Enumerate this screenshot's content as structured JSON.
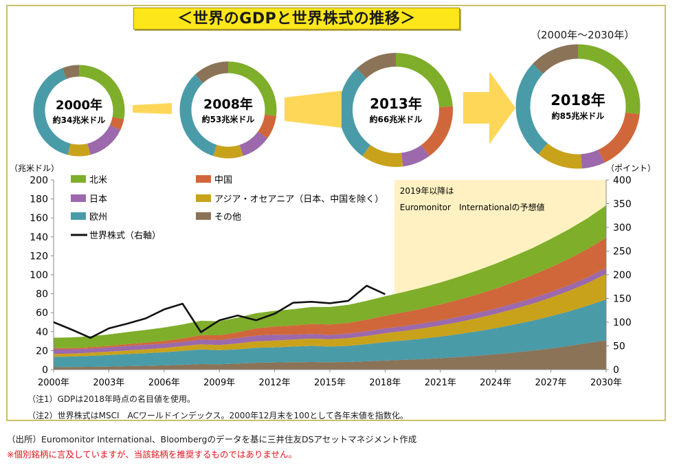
{
  "title": "＜世界のGDPと世界株式の推移＞",
  "period_label": "（2000年～2030年）",
  "donuts": [
    {
      "year": "2000年",
      "total": "約34兆米ドル",
      "shares": [
        0.28,
        0.04,
        0.14,
        0.08,
        0.4,
        0.06
      ]
    },
    {
      "year": "2008年",
      "total": "約53兆米ドル",
      "shares": [
        0.27,
        0.08,
        0.1,
        0.1,
        0.33,
        0.12
      ]
    },
    {
      "year": "2013年",
      "total": "約66兆米ドル",
      "shares": [
        0.24,
        0.16,
        0.08,
        0.12,
        0.28,
        0.12
      ]
    },
    {
      "year": "2018年",
      "total": "約85兆米ドル",
      "shares": [
        0.27,
        0.16,
        0.06,
        0.12,
        0.26,
        0.13
      ]
    }
  ],
  "chart_data": {
    "type": "area",
    "title": "世界のGDPと世界株式の推移",
    "left_unit": "（兆米ドル）",
    "right_unit": "（ポイント）",
    "left_ylim": [
      0,
      200
    ],
    "right_ylim": [
      0,
      400
    ],
    "left_ticks": [
      "0",
      "20",
      "40",
      "60",
      "80",
      "100",
      "120",
      "140",
      "160",
      "180",
      "200"
    ],
    "right_ticks": [
      "0",
      "50",
      "100",
      "150",
      "200",
      "250",
      "300",
      "350",
      "400"
    ],
    "x_ticks": [
      "2000年",
      "2003年",
      "2006年",
      "2009年",
      "2012年",
      "2015年",
      "2018年",
      "2021年",
      "2024年",
      "2027年",
      "2030年"
    ],
    "forecast_note_1": "2019年以降は",
    "forecast_note_2": "Euromonitor　Internationalの予想値",
    "forecast_start": 2018.5,
    "years": [
      2000,
      2001,
      2002,
      2003,
      2004,
      2005,
      2006,
      2007,
      2008,
      2009,
      2010,
      2011,
      2012,
      2013,
      2014,
      2015,
      2016,
      2017,
      2018,
      2019,
      2020,
      2021,
      2022,
      2023,
      2024,
      2025,
      2026,
      2027,
      2028,
      2029,
      2030
    ],
    "stack_series": [
      {
        "name": "その他",
        "color": "#8b7357",
        "values": [
          2.5,
          2.7,
          2.9,
          3.2,
          3.6,
          4.0,
          4.4,
          5.0,
          5.8,
          5.6,
          6.4,
          7.2,
          7.5,
          7.8,
          8.0,
          7.8,
          8.0,
          8.8,
          9.5,
          10.2,
          11.0,
          12.0,
          13.2,
          14.6,
          16.2,
          18.0,
          20.0,
          22.3,
          25.0,
          28.0,
          31.0
        ]
      },
      {
        "name": "欧州",
        "color": "#4a9ba8",
        "values": [
          11.0,
          11.1,
          11.6,
          12.2,
          12.8,
          13.3,
          13.9,
          14.8,
          15.5,
          14.8,
          15.0,
          15.8,
          16.0,
          16.5,
          17.0,
          16.5,
          17.0,
          18.0,
          19.5,
          20.5,
          21.5,
          22.8,
          24.2,
          25.8,
          27.5,
          29.5,
          31.5,
          34.0,
          36.5,
          39.5,
          43.0
        ]
      },
      {
        "name": "アジア・オセアニア（日本、中国を除く）",
        "color": "#c9a21c",
        "values": [
          3.0,
          3.1,
          3.3,
          3.5,
          3.8,
          4.1,
          4.5,
          5.0,
          5.4,
          5.5,
          6.2,
          6.8,
          7.1,
          7.4,
          7.7,
          7.8,
          8.1,
          8.7,
          9.4,
          10.1,
          10.9,
          11.8,
          12.8,
          13.9,
          15.1,
          16.5,
          18.0,
          19.7,
          21.6,
          23.8,
          27.0
        ]
      },
      {
        "name": "日本",
        "color": "#9b69ac",
        "values": [
          4.9,
          4.5,
          4.3,
          4.5,
          4.8,
          4.8,
          4.6,
          4.5,
          5.0,
          5.2,
          5.7,
          6.1,
          6.2,
          5.2,
          4.9,
          4.4,
          4.9,
          4.9,
          5.0,
          5.1,
          5.2,
          5.3,
          5.4,
          5.5,
          5.6,
          5.7,
          5.8,
          5.9,
          6.0,
          6.1,
          6.2
        ]
      },
      {
        "name": "中国",
        "color": "#d0673a",
        "values": [
          1.2,
          1.3,
          1.5,
          1.6,
          1.9,
          2.3,
          2.8,
          3.5,
          4.6,
          5.1,
          6.1,
          7.6,
          8.6,
          9.6,
          10.5,
          11.1,
          11.2,
          12.3,
          13.4,
          14.5,
          15.6,
          16.8,
          18.1,
          19.5,
          21.0,
          22.6,
          24.3,
          26.1,
          28.0,
          30.0,
          32.0
        ]
      },
      {
        "name": "北米",
        "color": "#7fae2b",
        "values": [
          11.0,
          11.3,
          11.6,
          12.0,
          12.7,
          13.4,
          14.2,
          14.8,
          15.2,
          14.8,
          15.5,
          16.0,
          16.6,
          17.2,
          17.9,
          18.5,
          19.1,
          19.8,
          20.6,
          21.4,
          22.3,
          23.2,
          24.2,
          25.2,
          26.3,
          27.4,
          28.6,
          29.8,
          31.1,
          32.4,
          34.0
        ]
      }
    ],
    "line_series": {
      "name": "世界株式（右軸）",
      "color": "#111111",
      "axis": "right",
      "points": [
        [
          2000,
          100
        ],
        [
          2001,
          84
        ],
        [
          2002,
          67
        ],
        [
          2003,
          87
        ],
        [
          2004,
          97
        ],
        [
          2005,
          108
        ],
        [
          2006,
          127
        ],
        [
          2007,
          139
        ],
        [
          2008,
          79
        ],
        [
          2009,
          104
        ],
        [
          2010,
          114
        ],
        [
          2011,
          104
        ],
        [
          2012,
          118
        ],
        [
          2013,
          141
        ],
        [
          2014,
          143
        ],
        [
          2015,
          140
        ],
        [
          2016,
          145
        ],
        [
          2017,
          177
        ],
        [
          2018,
          159
        ]
      ]
    },
    "legend": [
      {
        "label": "北米",
        "color": "#7fae2b",
        "kind": "box"
      },
      {
        "label": "中国",
        "color": "#d0673a",
        "kind": "box"
      },
      {
        "label": "日本",
        "color": "#9b69ac",
        "kind": "box"
      },
      {
        "label": "アジア・オセアニア（日本、中国を除く）",
        "color": "#c9a21c",
        "kind": "box"
      },
      {
        "label": "欧州",
        "color": "#4a9ba8",
        "kind": "box"
      },
      {
        "label": "その他",
        "color": "#8b7357",
        "kind": "box"
      },
      {
        "label": "世界株式（右軸）",
        "color": "#111111",
        "kind": "line"
      }
    ]
  },
  "notes": {
    "note1": "（注1）GDPは2018年時点の名目値を使用。",
    "note2": "（注2）世界株式はMSCI　ACワールドインデックス。2000年12月末を100として各年末値を指数化。"
  },
  "source": "（出所）Euromonitor International、Bloombergのデータを基に三井住友DSアセットマネジメント作成",
  "disclaimer": "※個別銘柄に言及していますが、当該銘柄を推奨するものではありません。"
}
